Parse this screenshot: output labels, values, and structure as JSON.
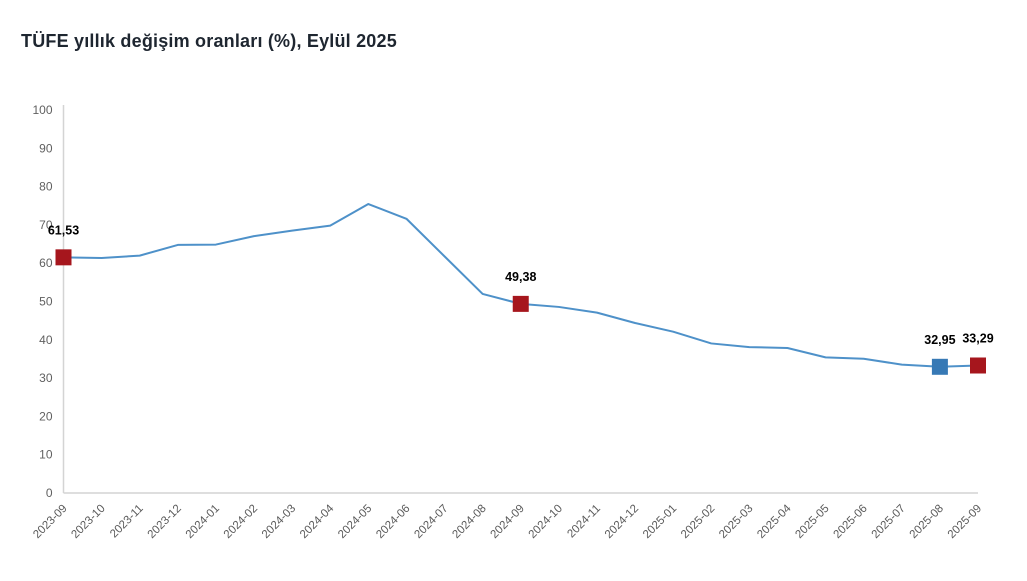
{
  "title": "TÜFE yıllık değişim oranları (%), Eylül 2025",
  "colors": {
    "line": "#4e91c9",
    "marker_red": "#a6161d",
    "marker_blue": "#3779b5",
    "axis_line": "#d4d4d4",
    "tick_text": "#606060",
    "title_text": "#1e2630",
    "background": "#ffffff",
    "point_label_text": "#000000"
  },
  "chart_data": {
    "type": "line",
    "title": "TÜFE yıllık değişim oranları (%), Eylül 2025",
    "xlabel": "",
    "ylabel": "",
    "ylim": [
      0,
      100
    ],
    "ytick_interval": 10,
    "grid": false,
    "legend_position": "none",
    "x": [
      "2023-09",
      "2023-10",
      "2023-11",
      "2023-12",
      "2024-01",
      "2024-02",
      "2024-03",
      "2024-04",
      "2024-05",
      "2024-06",
      "2024-07",
      "2024-08",
      "2024-09",
      "2024-10",
      "2024-11",
      "2024-12",
      "2025-01",
      "2025-02",
      "2025-03",
      "2025-04",
      "2025-05",
      "2025-06",
      "2025-07",
      "2025-08",
      "2025-09"
    ],
    "series": [
      {
        "name": "TÜFE yıllık değişim oranı (%)",
        "values": [
          61.53,
          61.36,
          61.98,
          64.77,
          64.86,
          67.07,
          68.5,
          69.8,
          75.45,
          71.6,
          61.78,
          51.97,
          49.38,
          48.58,
          47.09,
          44.38,
          42.12,
          39.05,
          38.1,
          37.86,
          35.41,
          35.05,
          33.52,
          32.95,
          33.29
        ]
      }
    ],
    "labeled_points": [
      {
        "month": "2023-09",
        "value": 61.53,
        "label": "61,53",
        "color_key": "marker_red"
      },
      {
        "month": "2024-09",
        "value": 49.38,
        "label": "49,38",
        "color_key": "marker_red"
      },
      {
        "month": "2025-08",
        "value": 32.95,
        "label": "32,95",
        "color_key": "marker_blue"
      },
      {
        "month": "2025-09",
        "value": 33.29,
        "label": "33,29",
        "color_key": "marker_red"
      }
    ]
  }
}
